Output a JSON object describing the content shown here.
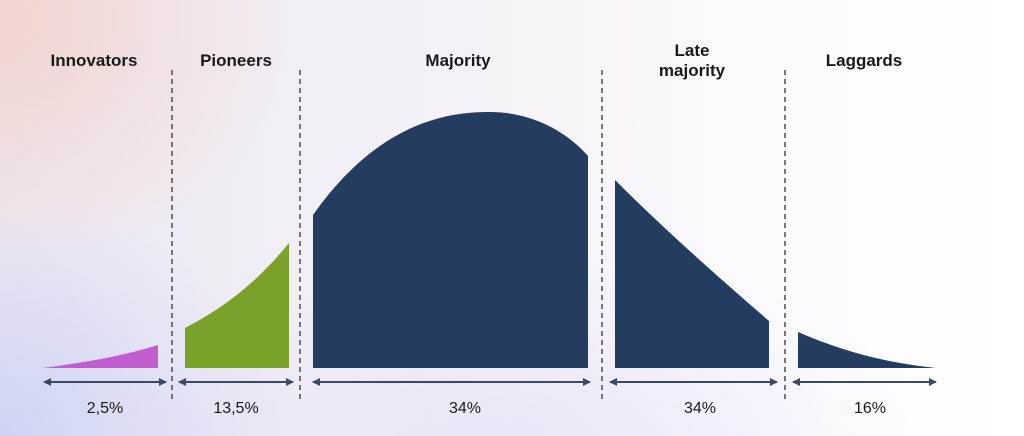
{
  "colors": {
    "innovators": "#c05ed0",
    "pioneers": "#7aa22a",
    "majority": "#253c61",
    "late_majority": "#253c61",
    "laggards": "#253c61",
    "arrow": "#3a4a66",
    "divider": "#333333"
  },
  "segments": [
    {
      "key": "innovators",
      "label": "Innovators",
      "percent": "2,5%"
    },
    {
      "key": "pioneers",
      "label": "Pioneers",
      "percent": "13,5%"
    },
    {
      "key": "majority",
      "label": "Majority",
      "percent": "34%"
    },
    {
      "key": "late_majority",
      "label": "Late\nmajority",
      "percent": "34%"
    },
    {
      "key": "laggards",
      "label": "Laggards",
      "percent": "16%"
    }
  ]
}
